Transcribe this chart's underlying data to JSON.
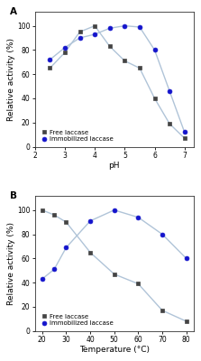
{
  "panel_A": {
    "title": "A",
    "xlabel": "pH",
    "ylabel": "Relative activity (%)",
    "xlim": [
      2,
      7.3
    ],
    "ylim": [
      0,
      112
    ],
    "xticks": [
      2,
      3,
      4,
      5,
      6,
      7
    ],
    "yticks": [
      0,
      20,
      40,
      60,
      80,
      100
    ],
    "free_laccase": {
      "x": [
        2.5,
        3.0,
        3.5,
        4.0,
        4.5,
        5.0,
        5.5,
        6.0,
        6.5,
        7.0
      ],
      "y": [
        65,
        78,
        95,
        100,
        83,
        71,
        65,
        40,
        19,
        7
      ],
      "color": "#444444",
      "marker": "s",
      "label": "Free laccase"
    },
    "immobilized_laccase": {
      "x": [
        2.5,
        3.0,
        3.5,
        4.0,
        4.5,
        5.0,
        5.5,
        6.0,
        6.5,
        7.0
      ],
      "y": [
        72,
        82,
        90,
        93,
        98,
        100,
        99,
        80,
        46,
        12
      ],
      "color": "#1414cc",
      "marker": "o",
      "label": "Immobilized laccase"
    },
    "line_color": "#b0c4d8"
  },
  "panel_B": {
    "title": "B",
    "xlabel": "Temperature (°C)",
    "ylabel": "Relative activity (%)",
    "xlim": [
      17,
      83
    ],
    "ylim": [
      0,
      112
    ],
    "xticks": [
      20,
      30,
      40,
      50,
      60,
      70,
      80
    ],
    "yticks": [
      0,
      20,
      40,
      60,
      80,
      100
    ],
    "free_laccase": {
      "x": [
        20,
        25,
        30,
        40,
        50,
        60,
        70,
        80
      ],
      "y": [
        100,
        96,
        90,
        65,
        47,
        39,
        17,
        8
      ],
      "color": "#444444",
      "marker": "s",
      "label": "Free laccase"
    },
    "immobilized_laccase": {
      "x": [
        20,
        25,
        30,
        40,
        50,
        60,
        70,
        80
      ],
      "y": [
        43,
        51,
        69,
        91,
        100,
        94,
        80,
        60
      ],
      "color": "#1414cc",
      "marker": "o",
      "label": "Immobilized laccase"
    },
    "line_color": "#b0c4d8"
  },
  "bg_color": "#ffffff",
  "panel_bg": "#ffffff",
  "linewidth": 1.0,
  "markersize": 3.5,
  "legend_fontsize": 5.0,
  "axis_fontsize": 6.5,
  "tick_fontsize": 5.5,
  "title_fontsize": 7.5
}
